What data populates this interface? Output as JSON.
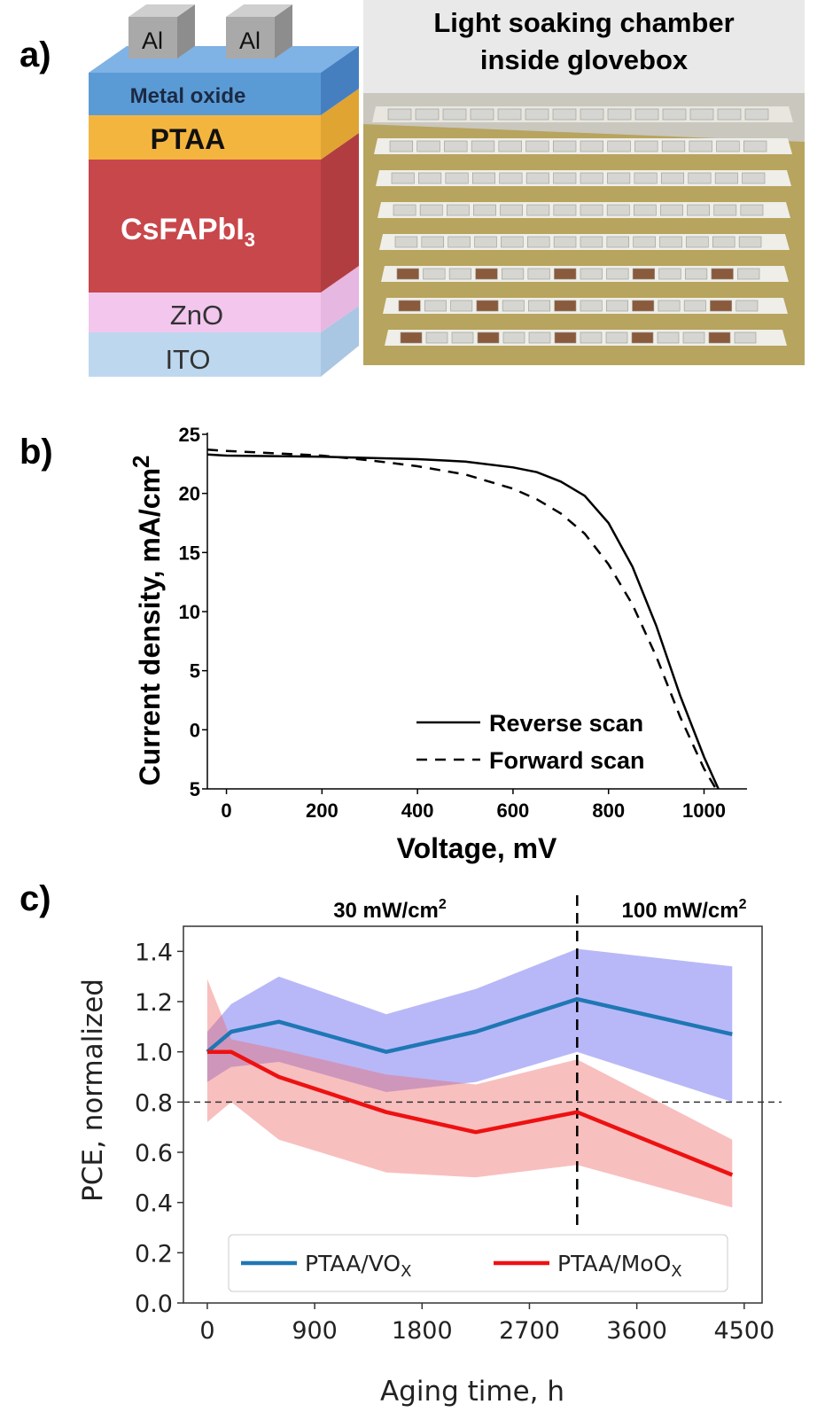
{
  "panels": {
    "a": {
      "label": "a)",
      "stack": {
        "electrodes": [
          "Al",
          "Al"
        ],
        "layers": [
          {
            "name": "Metal oxide",
            "color": "#5b9bd5"
          },
          {
            "name": "PTAA",
            "color": "#f4b53f"
          },
          {
            "name": "CsFAPbI",
            "sub": "3",
            "color": "#c8474b"
          },
          {
            "name": "ZnO",
            "color": "#f3c6ee"
          },
          {
            "name": "ITO",
            "color": "#bdd7ee"
          }
        ]
      },
      "photo": {
        "title_line1": "Light soaking chamber",
        "title_line2": "inside glovebox"
      }
    },
    "b": {
      "label": "b)"
    },
    "c": {
      "label": "c)"
    }
  },
  "chart_data": [
    {
      "type": "line",
      "panel": "b",
      "xlabel": "Voltage, mV",
      "ylabel": "Current density, mA/cm",
      "ylabel_sup": "2",
      "xlim": [
        -40,
        1090
      ],
      "ylim": [
        -5,
        25
      ],
      "xticks": [
        0,
        200,
        400,
        600,
        800,
        1000
      ],
      "yticks": [
        -5,
        0,
        5,
        10,
        15,
        20,
        25
      ],
      "ytick_labels": [
        "5",
        "0",
        "5",
        "10",
        "15",
        "20",
        "25"
      ],
      "legend_position": "lower-right",
      "series": [
        {
          "name": "Reverse scan",
          "dash": "solid",
          "x": [
            -40,
            0,
            200,
            400,
            500,
            600,
            650,
            700,
            750,
            800,
            850,
            900,
            950,
            1000,
            1030
          ],
          "y": [
            23.3,
            23.2,
            23.1,
            22.9,
            22.7,
            22.2,
            21.8,
            21.0,
            19.8,
            17.5,
            13.8,
            8.8,
            2.9,
            -2.3,
            -5
          ]
        },
        {
          "name": "Forward scan",
          "dash": "dashed",
          "x": [
            -40,
            0,
            200,
            300,
            400,
            500,
            600,
            650,
            700,
            750,
            800,
            850,
            900,
            950,
            1000,
            1025
          ],
          "y": [
            23.7,
            23.6,
            23.2,
            22.8,
            22.3,
            21.6,
            20.4,
            19.5,
            18.3,
            16.6,
            14.0,
            10.6,
            6.2,
            1.1,
            -3.3,
            -5
          ]
        }
      ]
    },
    {
      "type": "line",
      "panel": "c",
      "xlabel": "Aging time, h",
      "ylabel": "PCE, normalized",
      "xlim": [
        -200,
        4650
      ],
      "ylim": [
        0.0,
        1.5
      ],
      "xticks": [
        0,
        900,
        1800,
        2700,
        3600,
        4500
      ],
      "yticks": [
        0.0,
        0.2,
        0.4,
        0.6,
        0.8,
        1.0,
        1.2,
        1.4
      ],
      "ytick_labels": [
        "0.0",
        "0.2",
        "0.4",
        "0.6",
        "0.8",
        "1.0",
        "1.2",
        "1.4"
      ],
      "hline": 0.8,
      "vline": 3100,
      "annotations": [
        {
          "text": "30 mW/cm",
          "sup": "2"
        },
        {
          "text": "100 mW/cm",
          "sup": "2"
        }
      ],
      "legend_position": "lower-center",
      "series": [
        {
          "name": "PTAA/VO",
          "name_sub": "X",
          "color": "#1f77b4",
          "band_color": "#5555ee",
          "x": [
            0,
            200,
            600,
            1500,
            2250,
            3100,
            4400
          ],
          "y": [
            1.0,
            1.08,
            1.12,
            1.0,
            1.08,
            1.21,
            1.07
          ],
          "upper": [
            1.08,
            1.19,
            1.3,
            1.15,
            1.25,
            1.41,
            1.34
          ],
          "lower": [
            0.88,
            0.94,
            0.96,
            0.84,
            0.88,
            1.0,
            0.8
          ]
        },
        {
          "name": "PTAA/MoO",
          "name_sub": "X",
          "color": "#ee1111",
          "band_color": "#ee6666",
          "x": [
            0,
            200,
            600,
            1500,
            2250,
            3100,
            4400
          ],
          "y": [
            1.0,
            1.0,
            0.9,
            0.76,
            0.68,
            0.76,
            0.51
          ],
          "upper": [
            1.29,
            1.05,
            1.01,
            0.91,
            0.87,
            0.97,
            0.65
          ],
          "lower": [
            0.72,
            0.8,
            0.65,
            0.52,
            0.5,
            0.55,
            0.38
          ]
        }
      ]
    }
  ]
}
